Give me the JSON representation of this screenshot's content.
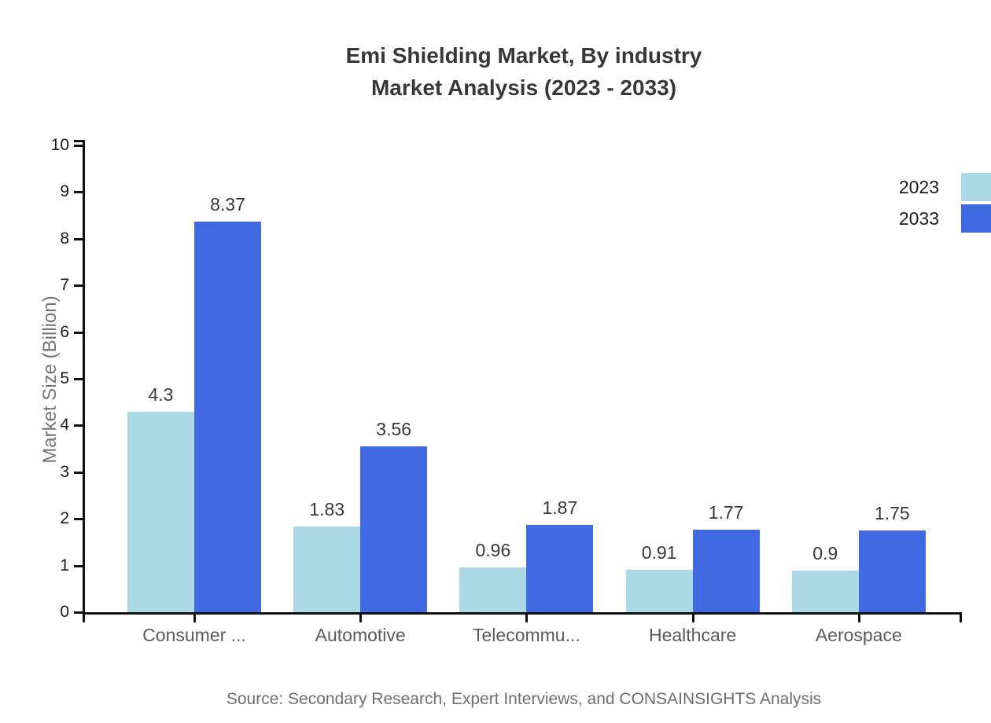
{
  "title": {
    "line1": "Emi Shielding Market, By industry",
    "line2": "Market Analysis (2023 - 2033)"
  },
  "source": "Source: Secondary Research, Expert Interviews, and CONSAINSIGHTS Analysis",
  "colors": {
    "series_2023": "#ADD8E6",
    "series_2033": "#4169E1",
    "axis": "#111111",
    "title_text": "#383838",
    "muted_text": "#757575"
  },
  "chart_data": {
    "type": "bar",
    "title": "Emi Shielding Market, By industry Market Analysis (2023 - 2033)",
    "categories": [
      "Consumer ...",
      "Automotive",
      "Telecommu...",
      "Healthcare",
      "Aerospace"
    ],
    "series": [
      {
        "name": "2023",
        "color": "#ADD8E6",
        "values": [
          4.3,
          1.83,
          0.96,
          0.91,
          0.9
        ]
      },
      {
        "name": "2033",
        "color": "#4169E1",
        "values": [
          8.37,
          3.56,
          1.87,
          1.77,
          1.75
        ]
      }
    ],
    "xlabel": "",
    "ylabel": "Market Size (Billion)",
    "ylim": [
      0,
      10
    ],
    "yticks": [
      0,
      1,
      2,
      3,
      4,
      5,
      6,
      7,
      8,
      9,
      10
    ],
    "grid": false,
    "value_labels": true,
    "legend_position": "top-right"
  }
}
